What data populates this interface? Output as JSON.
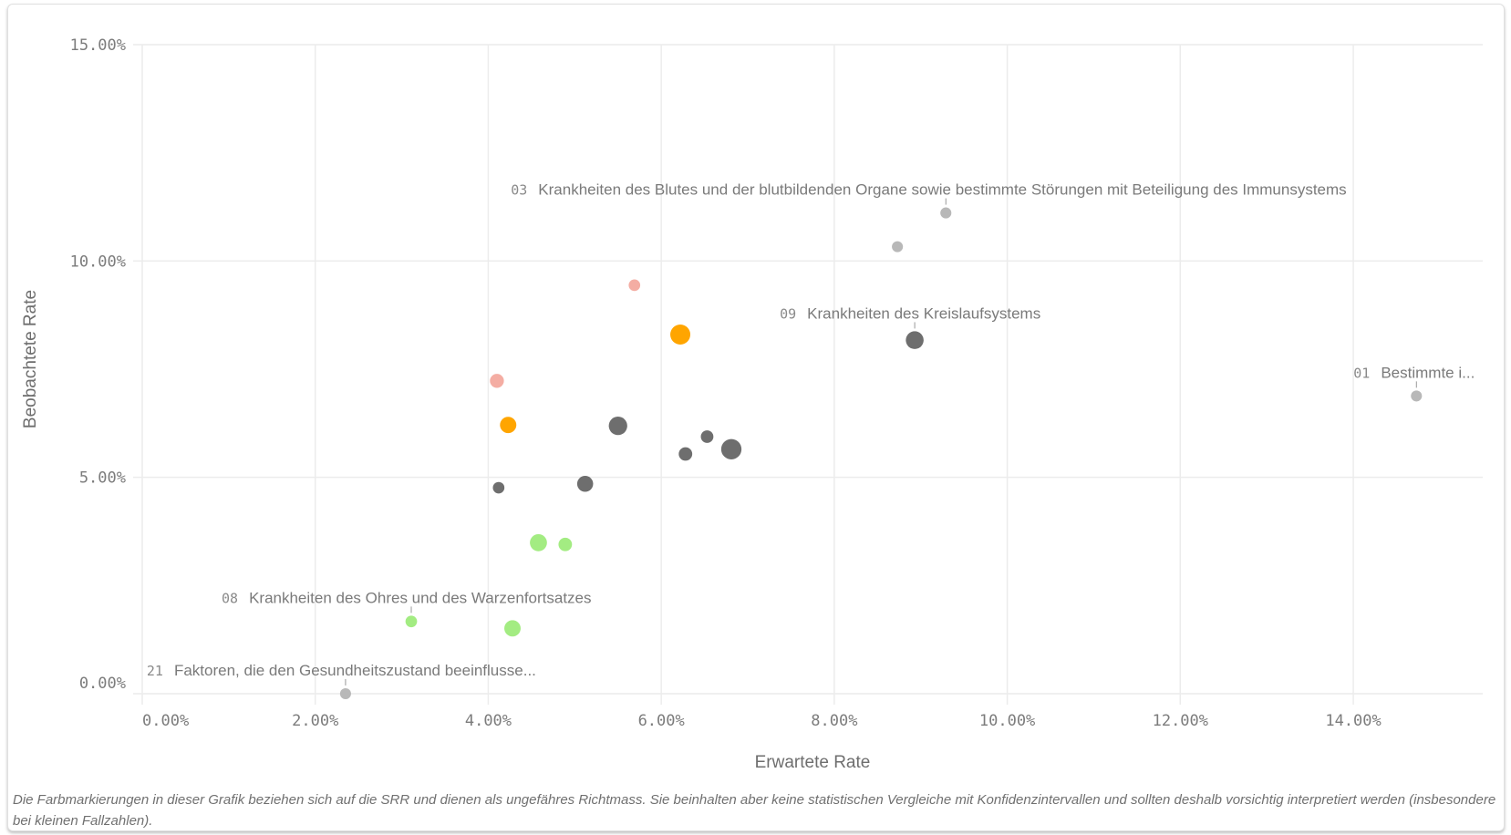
{
  "chart_data": {
    "type": "scatter",
    "xlabel": "Erwartete Rate",
    "ylabel": "Beobachtete Rate",
    "xlim": [
      0,
      15.5
    ],
    "ylim": [
      0,
      15.5
    ],
    "xticks": [
      "0.00%",
      "2.00%",
      "4.00%",
      "6.00%",
      "8.00%",
      "10.00%",
      "12.00%",
      "14.00%"
    ],
    "xtick_values": [
      0,
      2,
      4,
      6,
      8,
      10,
      12,
      14
    ],
    "yticks": [
      "0.00%",
      "5.00%",
      "10.00%",
      "15.00%"
    ],
    "ytick_values": [
      0,
      5,
      10,
      15
    ],
    "grid": true,
    "colors": {
      "dark": "#6e6e6e",
      "gray": "#b8b8b8",
      "salmon": "#f4ada3",
      "orange": "#ffa500",
      "green": "#a3ec82"
    },
    "points": [
      {
        "x": 9.29,
        "y": 11.11,
        "size": 1,
        "color": "gray",
        "code": "03",
        "label": "Krankheiten des Blutes und der blutbildenden Organe sowie bestimmte Störungen mit Beteiligung des Immunsystems"
      },
      {
        "x": 8.73,
        "y": 10.33,
        "size": 1,
        "color": "gray"
      },
      {
        "x": 5.69,
        "y": 9.44,
        "size": 1.1,
        "color": "salmon"
      },
      {
        "x": 6.22,
        "y": 8.3,
        "size": 3.3,
        "color": "orange"
      },
      {
        "x": 8.93,
        "y": 8.17,
        "size": 2.6,
        "color": "dark",
        "code": "09",
        "label": "Krankheiten des Kreislaufsystems"
      },
      {
        "x": 14.73,
        "y": 6.88,
        "size": 1,
        "color": "gray",
        "code": "01",
        "label": "Bestimmte i..."
      },
      {
        "x": 4.1,
        "y": 7.23,
        "size": 1.6,
        "color": "salmon"
      },
      {
        "x": 4.23,
        "y": 6.21,
        "size": 2.2,
        "color": "orange"
      },
      {
        "x": 5.5,
        "y": 6.19,
        "size": 2.8,
        "color": "dark"
      },
      {
        "x": 6.53,
        "y": 5.94,
        "size": 1.3,
        "color": "dark"
      },
      {
        "x": 6.28,
        "y": 5.54,
        "size": 1.5,
        "color": "dark"
      },
      {
        "x": 6.81,
        "y": 5.65,
        "size": 3.4,
        "color": "dark"
      },
      {
        "x": 4.12,
        "y": 4.76,
        "size": 1.1,
        "color": "dark"
      },
      {
        "x": 5.12,
        "y": 4.85,
        "size": 2.1,
        "color": "dark"
      },
      {
        "x": 4.58,
        "y": 3.49,
        "size": 2.4,
        "color": "green"
      },
      {
        "x": 4.89,
        "y": 3.45,
        "size": 1.5,
        "color": "green"
      },
      {
        "x": 3.11,
        "y": 1.67,
        "size": 1.1,
        "color": "green",
        "code": "08",
        "label": "Krankheiten des Ohres und des Warzenfortsatzes"
      },
      {
        "x": 4.28,
        "y": 1.51,
        "size": 2.2,
        "color": "green"
      },
      {
        "x": 2.35,
        "y": 0.0,
        "size": 1,
        "color": "gray",
        "code": "21",
        "label": "Faktoren, die den Gesundheitszustand beeinflusse..."
      }
    ]
  },
  "footnote": "Die Farbmarkierungen in dieser Grafik beziehen sich auf die SRR und dienen als ungefähres Richtmass. Sie beinhalten aber keine statistischen Vergleiche mit Konfidenzintervallen und sollten deshalb vorsichtig interpretiert werden (insbesondere bei kleinen Fallzahlen)."
}
